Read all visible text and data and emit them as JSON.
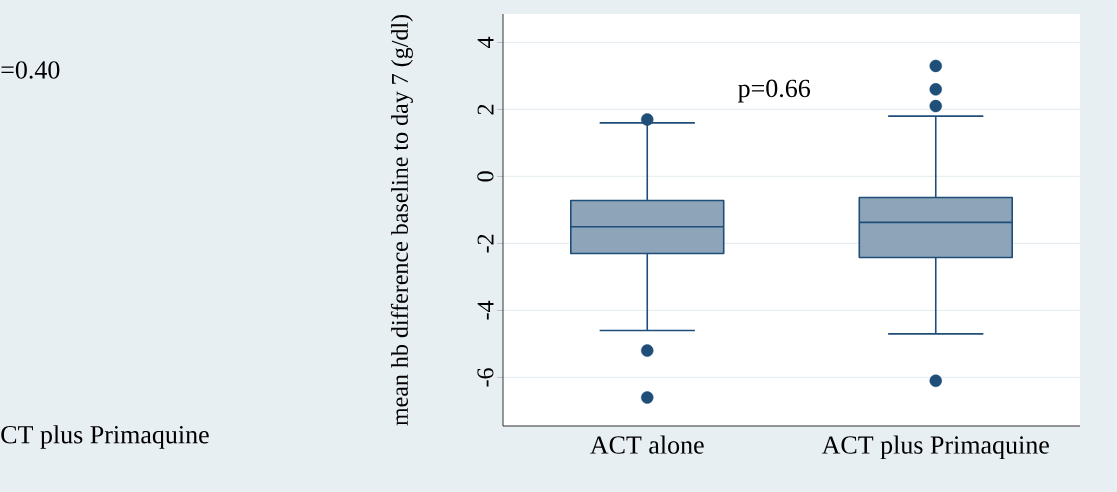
{
  "chart_data": {
    "type": "box",
    "ylabel": "mean hb difference baseline to day 7 (g/dl)",
    "categories": [
      "ACT alone",
      "ACT plus Primaquine"
    ],
    "boxes": [
      {
        "low": -4.6,
        "q1": -2.3,
        "median": -1.5,
        "q3": -0.72,
        "high": 1.6,
        "outliers": [
          1.7,
          -5.2,
          -6.6
        ]
      },
      {
        "low": -4.7,
        "q1": -2.42,
        "median": -1.37,
        "q3": -0.63,
        "high": 1.8,
        "outliers": [
          3.3,
          2.6,
          2.1,
          -6.1
        ]
      }
    ],
    "color": "#8da4b9",
    "ylim": [
      -7.45,
      4.85
    ],
    "yticks": [
      -6,
      -4,
      -2,
      0,
      2,
      4
    ],
    "grid": "y",
    "annotations": [
      "p=0.66",
      "=0.40",
      "CT plus Primaquine"
    ]
  }
}
